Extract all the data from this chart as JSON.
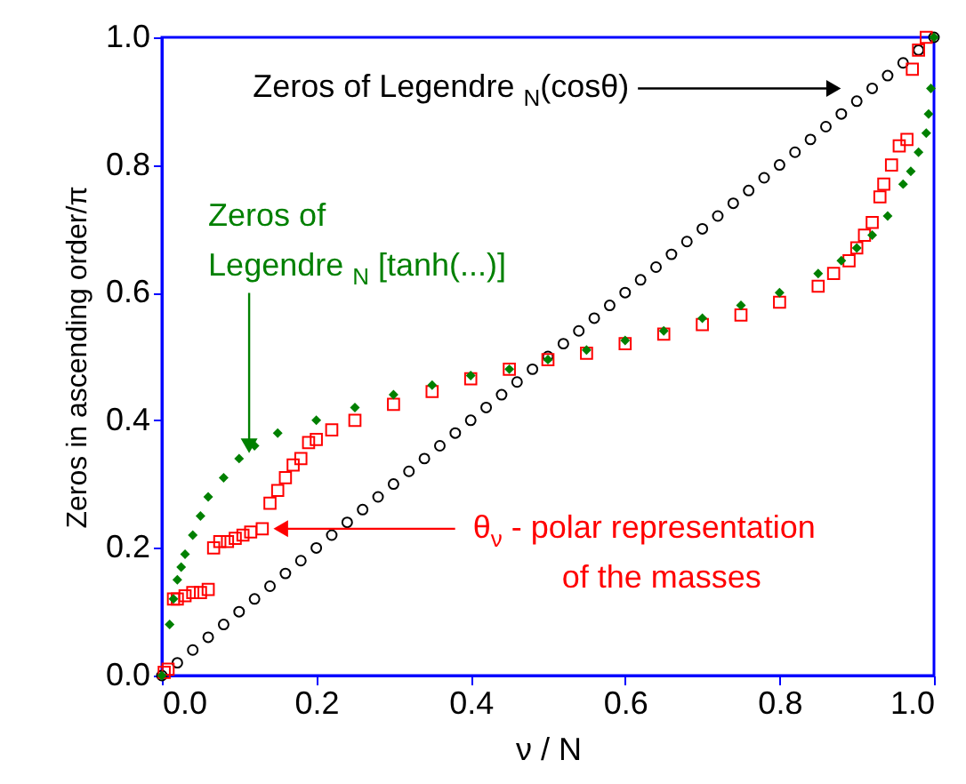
{
  "chart_data": {
    "type": "scatter",
    "xlabel": "ν / N",
    "ylabel": "Zeros in ascending order/π",
    "xlim": [
      0,
      1
    ],
    "ylim": [
      0,
      1
    ],
    "xticks": [
      {
        "value": 0,
        "label": "0.0"
      },
      0.2,
      0.4,
      0.6,
      0.8,
      {
        "value": 1,
        "label": "1.0"
      }
    ],
    "yticks": [
      {
        "value": 0,
        "label": "0.0"
      },
      0.2,
      0.4,
      0.6,
      0.8,
      {
        "value": 1,
        "label": "1.0"
      }
    ],
    "grid": false,
    "series": [
      {
        "color": "#000000",
        "marker": "circle",
        "x": [
          0,
          0.02,
          0.04,
          0.06,
          0.08,
          0.1,
          0.12,
          0.14,
          0.16,
          0.18,
          0.2,
          0.22,
          0.24,
          0.26,
          0.28,
          0.3,
          0.32,
          0.34,
          0.36,
          0.38,
          0.4,
          0.42,
          0.44,
          0.46,
          0.48,
          0.5,
          0.52,
          0.54,
          0.56,
          0.58,
          0.6,
          0.62,
          0.64,
          0.66,
          0.68,
          0.7,
          0.72,
          0.74,
          0.76,
          0.78,
          0.8,
          0.82,
          0.84,
          0.86,
          0.88,
          0.9,
          0.92,
          0.94,
          0.96,
          0.98,
          1.0
        ],
        "values": [
          0,
          0.02,
          0.04,
          0.06,
          0.08,
          0.1,
          0.12,
          0.14,
          0.16,
          0.18,
          0.2,
          0.22,
          0.24,
          0.26,
          0.28,
          0.3,
          0.32,
          0.34,
          0.36,
          0.38,
          0.4,
          0.42,
          0.44,
          0.46,
          0.48,
          0.5,
          0.52,
          0.54,
          0.56,
          0.58,
          0.6,
          0.62,
          0.64,
          0.66,
          0.68,
          0.7,
          0.72,
          0.74,
          0.76,
          0.78,
          0.8,
          0.82,
          0.84,
          0.86,
          0.88,
          0.9,
          0.92,
          0.94,
          0.96,
          0.98,
          1.0
        ]
      },
      {
        "color": "#ff0000",
        "marker": "square",
        "x": [
          0.003,
          0.008,
          0.015,
          0.02,
          0.03,
          0.04,
          0.05,
          0.06,
          0.067,
          0.075,
          0.085,
          0.095,
          0.105,
          0.115,
          0.13,
          0.14,
          0.15,
          0.16,
          0.17,
          0.18,
          0.19,
          0.2,
          0.22,
          0.25,
          0.3,
          0.35,
          0.4,
          0.45,
          0.5,
          0.55,
          0.6,
          0.65,
          0.7,
          0.75,
          0.8,
          0.85,
          0.87,
          0.89,
          0.9,
          0.91,
          0.92,
          0.93,
          0.935,
          0.945,
          0.955,
          0.965,
          0.972,
          0.98,
          0.99
        ],
        "values": [
          0.005,
          0.01,
          0.12,
          0.12,
          0.125,
          0.13,
          0.13,
          0.135,
          0.2,
          0.21,
          0.21,
          0.215,
          0.22,
          0.225,
          0.23,
          0.27,
          0.29,
          0.31,
          0.33,
          0.34,
          0.365,
          0.37,
          0.385,
          0.4,
          0.425,
          0.445,
          0.465,
          0.48,
          0.495,
          0.505,
          0.52,
          0.535,
          0.55,
          0.565,
          0.585,
          0.61,
          0.63,
          0.65,
          0.67,
          0.69,
          0.71,
          0.75,
          0.77,
          0.8,
          0.83,
          0.84,
          0.95,
          0.98,
          1.0
        ]
      },
      {
        "color": "#008000",
        "marker": "diamond",
        "x": [
          0,
          0.01,
          0.015,
          0.02,
          0.025,
          0.03,
          0.04,
          0.05,
          0.06,
          0.08,
          0.1,
          0.12,
          0.15,
          0.2,
          0.25,
          0.3,
          0.35,
          0.4,
          0.45,
          0.5,
          0.55,
          0.6,
          0.65,
          0.7,
          0.75,
          0.8,
          0.85,
          0.88,
          0.9,
          0.92,
          0.94,
          0.96,
          0.97,
          0.98,
          0.99,
          0.993,
          0.996,
          1.0
        ],
        "values": [
          0.0,
          0.08,
          0.12,
          0.15,
          0.17,
          0.19,
          0.22,
          0.25,
          0.28,
          0.31,
          0.34,
          0.36,
          0.38,
          0.4,
          0.42,
          0.44,
          0.455,
          0.47,
          0.48,
          0.495,
          0.51,
          0.525,
          0.54,
          0.56,
          0.58,
          0.6,
          0.63,
          0.65,
          0.67,
          0.69,
          0.72,
          0.77,
          0.79,
          0.82,
          0.85,
          0.88,
          0.92,
          1.0
        ]
      }
    ],
    "annotations": [
      {
        "text": "Zeros of Legendre $_{N}$(cosθ)",
        "x": 0.87,
        "y": 0.92
      },
      {
        "text": "Zeros of\nLegendre $_{N}$ [tanh(...)]",
        "x": 0.113,
        "y": 0.36
      },
      {
        "text": "θ$_{ν}$ - polar representation\nof the masses",
        "x": 0.154,
        "y": 0.23
      }
    ]
  }
}
